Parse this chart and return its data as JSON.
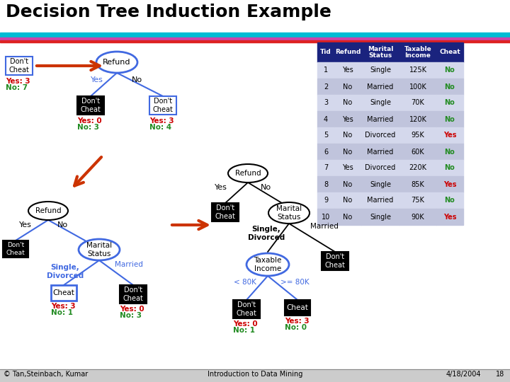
{
  "title": "Decision Tree Induction Example",
  "bg_color": "#ffffff",
  "header_bar_colors": [
    "#00bcd4",
    "#cc44aa",
    "#dd2222"
  ],
  "table": {
    "headers": [
      "Tid",
      "Refund",
      "Marital\nStatus",
      "Taxable\nIncome",
      "Cheat"
    ],
    "header_bg": "#1a237e",
    "rows": [
      [
        "1",
        "Yes",
        "Single",
        "125K",
        "No"
      ],
      [
        "2",
        "No",
        "Married",
        "100K",
        "No"
      ],
      [
        "3",
        "No",
        "Single",
        "70K",
        "No"
      ],
      [
        "4",
        "Yes",
        "Married",
        "120K",
        "No"
      ],
      [
        "5",
        "No",
        "Divorced",
        "95K",
        "Yes"
      ],
      [
        "6",
        "No",
        "Married",
        "60K",
        "No"
      ],
      [
        "7",
        "Yes",
        "Divorced",
        "220K",
        "No"
      ],
      [
        "8",
        "No",
        "Single",
        "85K",
        "Yes"
      ],
      [
        "9",
        "No",
        "Married",
        "75K",
        "No"
      ],
      [
        "10",
        "No",
        "Single",
        "90K",
        "Yes"
      ]
    ],
    "cheat_yes_color": "#cc0000",
    "cheat_no_color": "#228B22"
  },
  "footer_left": "© Tan,Steinbach, Kumar",
  "footer_center": "Introduction to Data Mining",
  "footer_right": "4/18/2004",
  "footer_page": "18",
  "yes_color": "#cc0000",
  "no_color": "#228B22",
  "blue_color": "#4169e1",
  "red_arrow_color": "#cc3300",
  "black": "#000000",
  "white": "#ffffff"
}
